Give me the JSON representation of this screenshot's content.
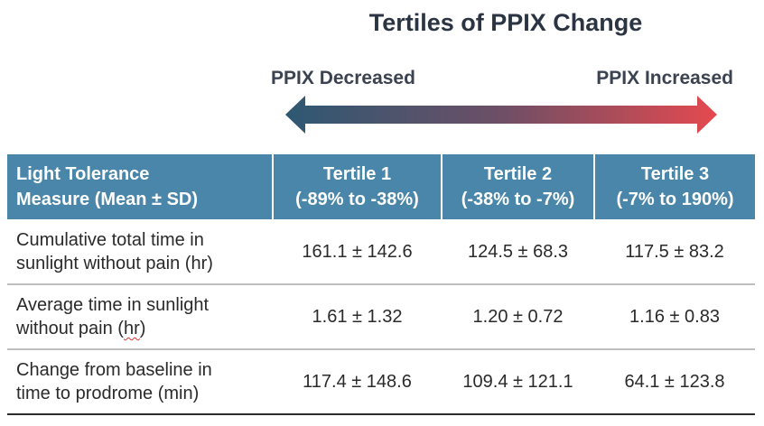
{
  "title": {
    "part1": "Tertiles",
    "part2": " of PPIX Change"
  },
  "direction": {
    "left_label": "PPIX Decreased",
    "right_label": "PPIX Increased",
    "colors": {
      "start": "#2e5873",
      "end": "#e5494f"
    }
  },
  "table": {
    "header_color": "#4a86a9",
    "headers": [
      {
        "line1": "Light Tolerance",
        "line2": "Measure (Mean ± SD)"
      },
      {
        "line1": "Tertile 1",
        "line2": "(-89% to -38%)"
      },
      {
        "line1": "Tertile 2",
        "line2": "(-38% to -7%)"
      },
      {
        "line1": "Tertile 3",
        "line2": "(-7% to 190%)"
      }
    ],
    "rows": [
      {
        "line1": "Cumulative total time in",
        "line2": "sunlight without pain (hr)",
        "values": [
          "161.1 ± 142.6",
          "124.5 ± 68.3",
          "117.5 ± 83.2"
        ]
      },
      {
        "line1": "Average time in sunlight",
        "line2a": "without pain (",
        "line2b": "hr",
        "line2c": ")",
        "values": [
          "1.61 ± 1.32",
          "1.20 ± 0.72",
          "1.16 ± 0.83"
        ]
      },
      {
        "line1": "Change from baseline in",
        "line2": "time to prodrome (min)",
        "values": [
          "117.4 ± 148.6",
          "109.4 ± 121.1",
          "64.1 ± 123.8"
        ]
      }
    ]
  }
}
